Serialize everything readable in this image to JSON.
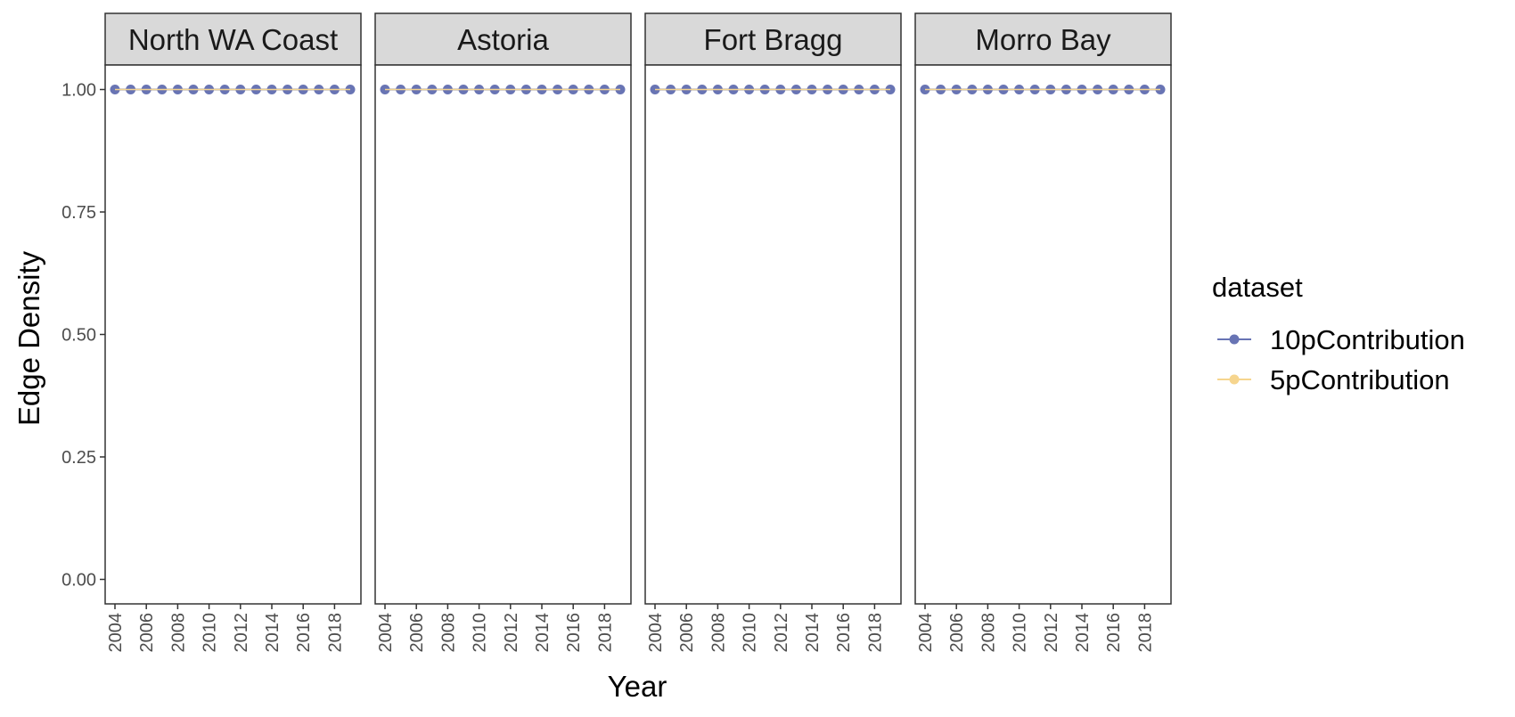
{
  "chart_data": {
    "type": "line",
    "facet_by": "location",
    "panels": [
      "North WA Coast",
      "Astoria",
      "Fort Bragg",
      "Morro Bay"
    ],
    "xlabel": "Year",
    "ylabel": "Edge Density",
    "x": [
      2004,
      2005,
      2006,
      2007,
      2008,
      2009,
      2010,
      2011,
      2012,
      2013,
      2014,
      2015,
      2016,
      2017,
      2018,
      2019
    ],
    "x_ticks": [
      "2004",
      "2006",
      "2008",
      "2010",
      "2012",
      "2014",
      "2016",
      "2018"
    ],
    "y_ticks": [
      "0.00",
      "0.25",
      "0.50",
      "0.75",
      "1.00"
    ],
    "ylim": [
      -0.05,
      1.05
    ],
    "grid": false,
    "legend_position": "right",
    "legend_title": "dataset",
    "series": [
      {
        "name": "10pContribution",
        "color": "#6874b4",
        "values": {
          "North WA Coast": [
            1,
            1,
            1,
            1,
            1,
            1,
            1,
            1,
            1,
            1,
            1,
            1,
            1,
            1,
            1,
            1
          ],
          "Astoria": [
            1,
            1,
            1,
            1,
            1,
            1,
            1,
            1,
            1,
            1,
            1,
            1,
            1,
            1,
            1,
            1
          ],
          "Fort Bragg": [
            1,
            1,
            1,
            1,
            1,
            1,
            1,
            1,
            1,
            1,
            1,
            1,
            1,
            1,
            1,
            1
          ],
          "Morro Bay": [
            1,
            1,
            1,
            1,
            1,
            1,
            1,
            1,
            1,
            1,
            1,
            1,
            1,
            1,
            1,
            1
          ]
        }
      },
      {
        "name": "5pContribution",
        "color": "#f6d58e",
        "values": {
          "North WA Coast": [
            1,
            1,
            1,
            1,
            1,
            1,
            1,
            1,
            1,
            1,
            1,
            1,
            1,
            1,
            1,
            1
          ],
          "Astoria": [
            1,
            1,
            1,
            1,
            1,
            1,
            1,
            1,
            1,
            1,
            1,
            1,
            1,
            1,
            1,
            1
          ],
          "Fort Bragg": [
            1,
            1,
            1,
            1,
            1,
            1,
            1,
            1,
            1,
            1,
            1,
            1,
            1,
            1,
            1,
            1
          ],
          "Morro Bay": [
            1,
            1,
            1,
            1,
            1,
            1,
            1,
            1,
            1,
            1,
            1,
            1,
            1,
            1,
            1,
            1
          ]
        }
      }
    ]
  }
}
